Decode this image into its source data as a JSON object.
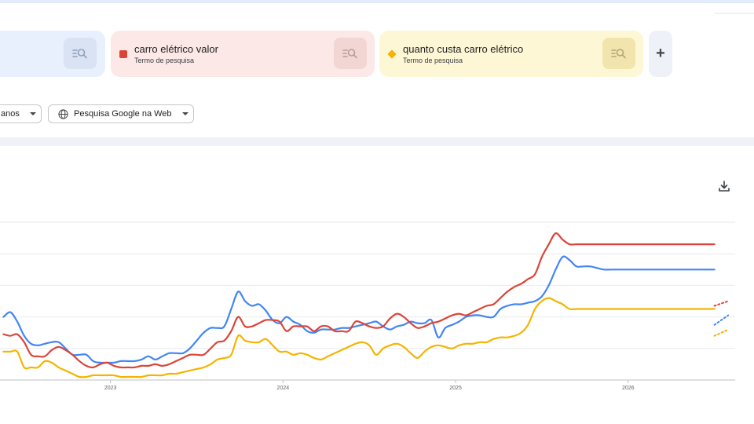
{
  "terms": [
    {
      "label": "",
      "kind": "",
      "color": "#4285f4",
      "bg": "#e8f0fe",
      "btn_bg": "#d5e0f2"
    },
    {
      "label": "carro elétrico valor",
      "kind": "Termo de pesquisa",
      "color": "#db4437",
      "bg": "#fce8e6",
      "btn_bg": "#f2d4d1"
    },
    {
      "label": "quanto custa carro elétrico",
      "kind": "Termo de pesquisa",
      "color": "#f4b400",
      "bg": "#fef7d6",
      "btn_bg": "#f0e3a6"
    }
  ],
  "add_label": "+",
  "filters": {
    "period_label": "anos",
    "source_label": "Pesquisa Google na Web"
  },
  "icons": {
    "term_search": "search-list-icon",
    "marker_2": "square-marker-icon",
    "marker_3": "diamond-marker-icon",
    "dropdown": "chevron-down-icon",
    "source": "globe-icon",
    "download": "download-icon"
  },
  "chart_data": {
    "type": "line",
    "title": "",
    "xlabel": "",
    "ylabel": "",
    "ylim": [
      0,
      100
    ],
    "grid": true,
    "x_ticks": [
      "2023",
      "2024",
      "2025",
      "2026"
    ],
    "x_tick_positions": [
      2023.0,
      2024.0,
      2025.0,
      2026.0
    ],
    "x": [
      2022.38,
      2022.42,
      2022.46,
      2022.5,
      2022.54,
      2022.58,
      2022.62,
      2022.66,
      2022.7,
      2022.74,
      2022.78,
      2022.82,
      2022.86,
      2022.9,
      2022.94,
      2022.98,
      2023.02,
      2023.06,
      2023.1,
      2023.14,
      2023.18,
      2023.22,
      2023.26,
      2023.3,
      2023.34,
      2023.38,
      2023.42,
      2023.46,
      2023.5,
      2023.54,
      2023.58,
      2023.62,
      2023.66,
      2023.7,
      2023.74,
      2023.78,
      2023.82,
      2023.86,
      2023.9,
      2023.94,
      2023.98,
      2024.02,
      2024.06,
      2024.1,
      2024.14,
      2024.18,
      2024.22,
      2024.26,
      2024.3,
      2024.34,
      2024.38,
      2024.42,
      2024.46,
      2024.5,
      2024.54,
      2024.58,
      2024.62,
      2024.66,
      2024.7,
      2024.74,
      2024.78,
      2024.82,
      2024.86,
      2024.9,
      2024.94,
      2024.98,
      2025.02,
      2025.06,
      2025.1,
      2025.14,
      2025.18,
      2025.22,
      2025.26,
      2025.3,
      2025.34,
      2025.38,
      2025.42,
      2025.46,
      2025.5,
      2025.54,
      2025.58,
      2025.62,
      2025.66,
      2025.7,
      2025.74,
      2025.78,
      2025.82,
      2025.86,
      2025.9,
      2025.94,
      2025.98,
      2026.02,
      2026.06,
      2026.1,
      2026.14,
      2026.18,
      2026.22,
      2026.26,
      2026.3,
      2026.34,
      2026.38,
      2026.42,
      2026.46,
      2026.5
    ],
    "series": [
      {
        "name": "",
        "color": "#4285f4",
        "forecast_from": 2026.5,
        "forecast": [
          [
            2026.5,
            35
          ],
          [
            2026.58,
            41
          ]
        ],
        "values": [
          40,
          43,
          37,
          28,
          23,
          22,
          23,
          24,
          24,
          20,
          16,
          16,
          16,
          12,
          11,
          11,
          11,
          12,
          12,
          12,
          13,
          15,
          13,
          15,
          17,
          17,
          17,
          20,
          25,
          30,
          33,
          33,
          34,
          45,
          56,
          50,
          47,
          48,
          44,
          38,
          36,
          40,
          37,
          35,
          31,
          30,
          32,
          32,
          32,
          33,
          33,
          34,
          35,
          36,
          37,
          34,
          32,
          34,
          35,
          37,
          36,
          36,
          38,
          27,
          33,
          35,
          37,
          40,
          41,
          41,
          40,
          40,
          45,
          47,
          48,
          48,
          49,
          50,
          53,
          60,
          70,
          78,
          76,
          72,
          72,
          72,
          71,
          70,
          70,
          70,
          70,
          70,
          70,
          70,
          70,
          70,
          70,
          70,
          70,
          70,
          70,
          70,
          70,
          70
        ]
      },
      {
        "name": "carro elétrico valor",
        "color": "#db4437",
        "forecast_from": 2026.5,
        "forecast": [
          [
            2026.5,
            47
          ],
          [
            2026.58,
            50
          ]
        ],
        "values": [
          29,
          28,
          29,
          24,
          16,
          15,
          15,
          19,
          21,
          19,
          16,
          12,
          9,
          8,
          10,
          11,
          9,
          8,
          8,
          8,
          9,
          9,
          10,
          9,
          10,
          12,
          14,
          16,
          16,
          16,
          20,
          24,
          25,
          31,
          40,
          34,
          34,
          36,
          38,
          38,
          37,
          31,
          34,
          34,
          34,
          31,
          34,
          34,
          31,
          31,
          31,
          37,
          36,
          34,
          33,
          34,
          39,
          42,
          40,
          36,
          33,
          34,
          36,
          37,
          39,
          41,
          42,
          41,
          43,
          45,
          47,
          48,
          52,
          56,
          59,
          61,
          64,
          67,
          78,
          86,
          93,
          89,
          86,
          86,
          86,
          86,
          86,
          86,
          86,
          86,
          86,
          86,
          86,
          86,
          86,
          86,
          86,
          86,
          86,
          86,
          86,
          86,
          86,
          86
        ]
      },
      {
        "name": "quanto custa carro elétrico",
        "color": "#f4b400",
        "forecast_from": 2026.5,
        "forecast": [
          [
            2026.5,
            28
          ],
          [
            2026.58,
            32
          ]
        ],
        "values": [
          18,
          18,
          18,
          8,
          8,
          8,
          12,
          11,
          8,
          6,
          4,
          2,
          2,
          3,
          3,
          3,
          3,
          2,
          2,
          2,
          2,
          3,
          3,
          3,
          4,
          4,
          5,
          6,
          7,
          8,
          10,
          13,
          14,
          16,
          28,
          25,
          24,
          24,
          26,
          22,
          18,
          18,
          16,
          17,
          16,
          14,
          13,
          15,
          17,
          19,
          21,
          23,
          24,
          22,
          16,
          20,
          22,
          23,
          21,
          17,
          14,
          18,
          21,
          22,
          21,
          20,
          22,
          23,
          23,
          24,
          24,
          26,
          27,
          27,
          28,
          30,
          35,
          45,
          50,
          52,
          50,
          48,
          45,
          45,
          45,
          45,
          45,
          45,
          45,
          45,
          45,
          45,
          45,
          45,
          45,
          45,
          45,
          45,
          45,
          45,
          45,
          45,
          45,
          45
        ]
      }
    ]
  }
}
